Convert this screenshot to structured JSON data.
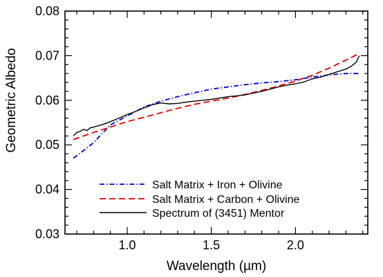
{
  "chart_data": {
    "type": "line",
    "title": "",
    "xlabel": "Wavelength (µm)",
    "ylabel": "Geometric Albedo",
    "xlim": [
      0.63,
      2.43
    ],
    "ylim": [
      0.03,
      0.08
    ],
    "x_ticks": [
      1.0,
      1.5,
      2.0
    ],
    "x_tick_labels": [
      "1.0",
      "1.5",
      "2.0"
    ],
    "y_ticks": [
      0.03,
      0.04,
      0.05,
      0.06,
      0.07,
      0.08
    ],
    "y_tick_labels": [
      "0.03",
      "0.04",
      "0.05",
      "0.06",
      "0.07",
      "0.08"
    ],
    "grid": false,
    "legend_position": "bottom-center",
    "series": [
      {
        "name": "Salt Matrix + Iron + Olivine",
        "color": "#0000cc",
        "style": "dash-dot",
        "x": [
          0.68,
          0.75,
          0.8,
          0.85,
          0.9,
          1.0,
          1.1,
          1.2,
          1.3,
          1.4,
          1.5,
          1.6,
          1.7,
          1.8,
          1.9,
          2.0,
          2.1,
          2.2,
          2.3,
          2.38
        ],
        "y": [
          0.047,
          0.049,
          0.0505,
          0.0525,
          0.0545,
          0.0565,
          0.0585,
          0.0598,
          0.0608,
          0.0617,
          0.0625,
          0.063,
          0.0635,
          0.0639,
          0.0642,
          0.0646,
          0.0652,
          0.0657,
          0.066,
          0.066
        ]
      },
      {
        "name": "Salt Matrix + Carbon + Olivine",
        "color": "#dd0000",
        "style": "dashed",
        "x": [
          0.68,
          0.8,
          0.9,
          1.0,
          1.1,
          1.2,
          1.3,
          1.4,
          1.5,
          1.6,
          1.7,
          1.8,
          1.9,
          2.0,
          2.1,
          2.2,
          2.3,
          2.38
        ],
        "y": [
          0.0512,
          0.0528,
          0.054,
          0.0552,
          0.0562,
          0.0572,
          0.0582,
          0.0591,
          0.0598,
          0.0605,
          0.0613,
          0.0622,
          0.0632,
          0.0643,
          0.0656,
          0.0672,
          0.069,
          0.0705
        ]
      },
      {
        "name": "Spectrum of (3451) Mentor",
        "color": "#000000",
        "style": "solid",
        "x": [
          0.68,
          0.7,
          0.72,
          0.74,
          0.76,
          0.78,
          0.8,
          0.85,
          0.9,
          0.95,
          1.0,
          1.05,
          1.1,
          1.15,
          1.2,
          1.25,
          1.3,
          1.35,
          1.4,
          1.45,
          1.5,
          1.55,
          1.6,
          1.65,
          1.7,
          1.75,
          1.8,
          1.85,
          1.9,
          1.95,
          2.0,
          2.05,
          2.1,
          2.15,
          2.2,
          2.25,
          2.3,
          2.33,
          2.36,
          2.38
        ],
        "y": [
          0.052,
          0.0528,
          0.053,
          0.0535,
          0.0532,
          0.0538,
          0.054,
          0.0545,
          0.0552,
          0.056,
          0.0568,
          0.0575,
          0.0583,
          0.059,
          0.0594,
          0.0592,
          0.0593,
          0.0596,
          0.0598,
          0.06,
          0.0602,
          0.0605,
          0.0608,
          0.061,
          0.0612,
          0.0616,
          0.062,
          0.0625,
          0.063,
          0.0634,
          0.0637,
          0.0641,
          0.0648,
          0.0652,
          0.0658,
          0.0664,
          0.067,
          0.0676,
          0.0685,
          0.07
        ]
      }
    ]
  }
}
